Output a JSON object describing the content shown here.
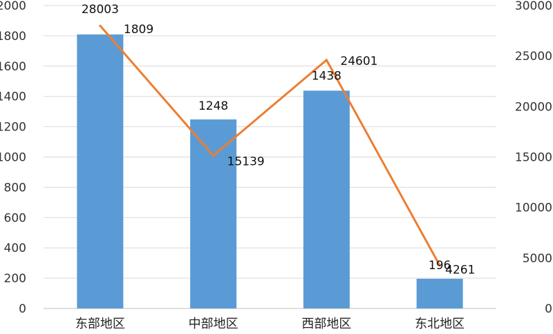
{
  "chart_data": {
    "type": "bar",
    "categories": [
      "东部地区",
      "中部地区",
      "西部地区",
      "东北地区"
    ],
    "series": [
      {
        "type": "bar",
        "axis": "left",
        "values": [
          1809,
          1248,
          1438,
          196
        ],
        "color": "#5B9BD5",
        "data_labels": [
          "1809",
          "1248",
          "1438",
          "196"
        ]
      },
      {
        "type": "line",
        "axis": "right",
        "values": [
          28003,
          15139,
          24601,
          4261
        ],
        "color": "#ED7D31",
        "data_labels": [
          "28003",
          "15139",
          "24601",
          "4261"
        ]
      }
    ],
    "y_left": {
      "ylim": [
        0,
        2000
      ],
      "ticks": [
        0,
        200,
        400,
        600,
        800,
        1000,
        1200,
        1400,
        1600,
        1800,
        2000
      ]
    },
    "y_right": {
      "ylim": [
        0,
        30000
      ],
      "ticks": [
        0,
        5000,
        10000,
        15000,
        20000,
        25000,
        30000
      ]
    },
    "grid": true,
    "gridline_color": "#D9D9D9",
    "title": "",
    "xlabel": "",
    "ylabel": ""
  }
}
